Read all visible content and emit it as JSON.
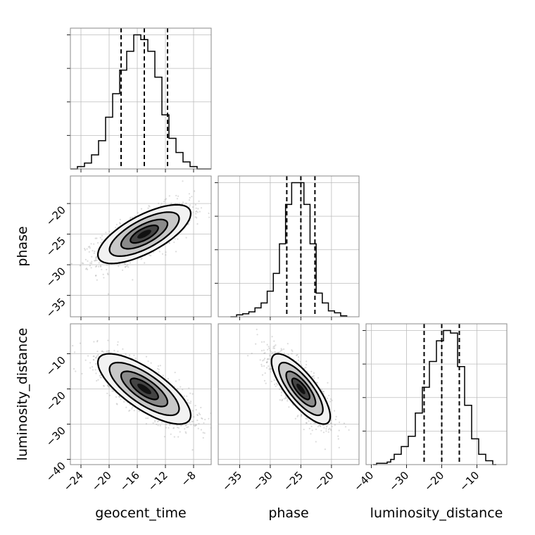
{
  "chart_data": {
    "type": "corner",
    "parameters": [
      "geocent_time",
      "phase",
      "luminosity_distance"
    ],
    "axes": {
      "geocent_time": {
        "range": [
          -25.5,
          -5.5
        ],
        "ticks": [
          -24,
          -20,
          -16,
          -12,
          -8
        ],
        "tick_labels": [
          "−24",
          "−20",
          "−16",
          "−12",
          "−8"
        ]
      },
      "phase": {
        "range": [
          -38.5,
          -15.5
        ],
        "ticks": [
          -35,
          -30,
          -25,
          -20
        ],
        "tick_labels": [
          "−35",
          "−30",
          "−25",
          "−20"
        ]
      },
      "luminosity_distance": {
        "range": [
          -41.5,
          -1.5
        ],
        "ticks": [
          -40,
          -30,
          -20,
          -10
        ],
        "tick_labels": [
          "−40",
          "−30",
          "−20",
          "−10"
        ]
      }
    },
    "axis_labels": {
      "x": [
        "geocent_time",
        "phase",
        "luminosity_distance"
      ],
      "y": [
        "",
        "phase",
        "luminosity_distance"
      ]
    },
    "grid": true,
    "histograms": [
      {
        "param": "geocent_time",
        "bin_edges": [
          -25.5,
          -24.5,
          -23.5,
          -22.5,
          -21.5,
          -20.5,
          -19.5,
          -18.5,
          -17.5,
          -16.5,
          -15.5,
          -14.5,
          -13.5,
          -12.5,
          -11.5,
          -10.5,
          -9.5,
          -8.5,
          -7.5,
          -6.5,
          -5.5
        ],
        "counts": [
          0,
          2,
          5,
          12,
          24,
          44,
          64,
          84,
          100,
          114,
          110,
          100,
          78,
          46,
          26,
          14,
          6,
          2,
          0,
          0
        ],
        "quantiles": [
          -18.3,
          -15.0,
          -11.7
        ]
      },
      {
        "param": "phase",
        "bin_edges": [
          -36.5,
          -35.5,
          -34.5,
          -33.5,
          -32.5,
          -31.5,
          -30.5,
          -29.5,
          -28.5,
          -27.5,
          -26.5,
          -25.5,
          -24.5,
          -23.5,
          -22.5,
          -21.5,
          -20.5,
          -19.5,
          -18.5,
          -17.5
        ],
        "counts": [
          0,
          2,
          3,
          5,
          9,
          14,
          26,
          44,
          74,
          114,
          136,
          136,
          114,
          74,
          24,
          14,
          6,
          4,
          1
        ],
        "quantiles": [
          -27.3,
          -25.0,
          -22.7
        ]
      },
      {
        "param": "luminosity_distance",
        "bin_edges": [
          -39.5,
          -38.5,
          -37.5,
          -36.5,
          -35.5,
          -34.5,
          -33.5,
          -32.5,
          -31.5,
          -30.5,
          -29.5,
          -28.5,
          -27.5,
          -26.5,
          -25.5,
          -24.5,
          -23.5,
          -22.5,
          -21.5,
          -20.5,
          -19.5,
          -18.5,
          -17.5,
          -16.5,
          -15.5,
          -14.5,
          -13.5,
          -12.5,
          -11.5,
          -10.5,
          -9.5,
          -8.5,
          -7.5,
          -6.5,
          -5.5,
          -4.5
        ],
        "counts": [
          0,
          1,
          1,
          1,
          2,
          4,
          8,
          8,
          14,
          14,
          22,
          22,
          40,
          40,
          60,
          60,
          80,
          80,
          96,
          96,
          104,
          104,
          102,
          102,
          76,
          76,
          46,
          46,
          20,
          20,
          8,
          8,
          3,
          3,
          0
        ],
        "quantiles": [
          -25.0,
          -20.0,
          -15.0
        ]
      }
    ],
    "joint": [
      {
        "x": "geocent_time",
        "y": "phase",
        "mean": [
          -15.0,
          -25.0
        ],
        "std": [
          3.3,
          2.4
        ],
        "corr": 0.7
      },
      {
        "x": "geocent_time",
        "y": "luminosity_distance",
        "mean": [
          -15.0,
          -20.0
        ],
        "std": [
          3.3,
          5.0
        ],
        "corr": -0.75
      },
      {
        "x": "phase",
        "y": "luminosity_distance",
        "mean": [
          -25.0,
          -20.0
        ],
        "std": [
          2.4,
          5.0
        ],
        "corr": -0.78
      }
    ]
  }
}
